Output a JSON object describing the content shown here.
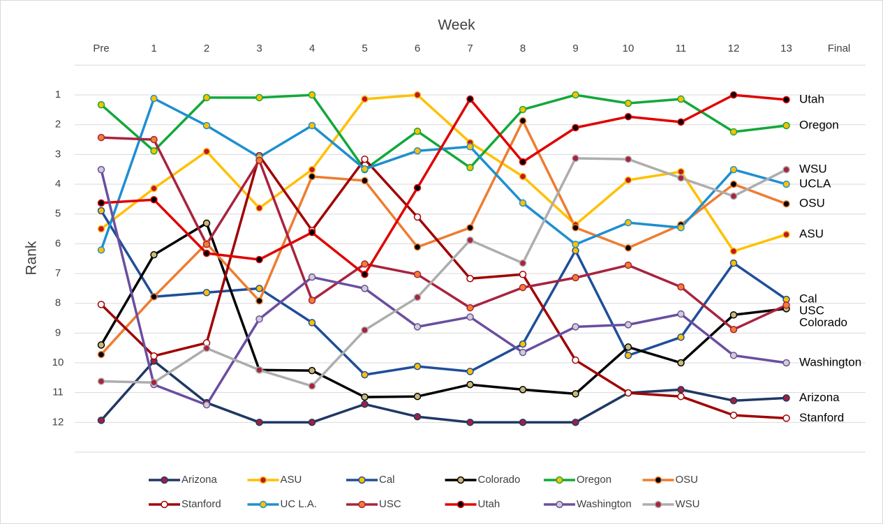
{
  "chart_data": {
    "type": "line",
    "x_axis_title": "Week",
    "y_axis_title": "Rank",
    "categories": [
      "Pre",
      "1",
      "2",
      "3",
      "4",
      "5",
      "6",
      "7",
      "8",
      "9",
      "10",
      "11",
      "12",
      "13",
      "Final"
    ],
    "ylim": [
      0,
      13
    ],
    "y_inverted": true,
    "yticks": [
      1,
      2,
      3,
      4,
      5,
      6,
      7,
      8,
      9,
      10,
      11,
      12
    ],
    "grid": true,
    "legend": "bottom",
    "series": [
      {
        "name": "Arizona",
        "end_label": "Arizona",
        "color": "#1f3864",
        "marker_color": "#a0203c",
        "values": [
          11.93,
          9.94,
          11.34,
          12,
          12,
          11.39,
          11.81,
          12,
          12,
          12,
          11.01,
          10.9,
          11.27,
          11.18,
          null
        ]
      },
      {
        "name": "ASU",
        "end_label": "ASU",
        "color": "#ffc000",
        "marker_color": "#c0162c",
        "values": [
          5.5,
          4.14,
          2.9,
          4.8,
          3.51,
          1.14,
          1.0,
          2.6,
          3.74,
          5.36,
          3.86,
          3.58,
          6.25,
          5.69,
          null
        ]
      },
      {
        "name": "Cal",
        "end_label": "Cal",
        "color": "#1f4e99",
        "marker_color": "#ffc000",
        "values": [
          4.89,
          7.78,
          7.64,
          7.5,
          8.65,
          10.4,
          10.12,
          10.29,
          9.37,
          6.23,
          9.75,
          9.14,
          6.65,
          7.87,
          null
        ]
      },
      {
        "name": "Colorado",
        "end_label": "Colorado",
        "color": "#000000",
        "marker_color": "#c9b97a",
        "values": [
          9.4,
          6.37,
          5.31,
          10.24,
          10.26,
          11.15,
          11.13,
          10.73,
          10.9,
          11.04,
          9.47,
          10.0,
          8.39,
          8.18,
          null
        ]
      },
      {
        "name": "Oregon",
        "end_label": "Oregon",
        "color": "#12a83a",
        "marker_color": "#ffc000",
        "values": [
          1.33,
          2.88,
          1.09,
          1.09,
          1.0,
          3.51,
          2.22,
          3.44,
          1.49,
          1.0,
          1.28,
          1.14,
          2.24,
          2.03,
          null
        ]
      },
      {
        "name": "OSU",
        "end_label": "OSU",
        "color": "#ed7d31",
        "marker_color": "#000000",
        "values": [
          9.72,
          7.78,
          5.99,
          7.92,
          3.74,
          3.88,
          6.11,
          5.46,
          1.87,
          5.46,
          6.14,
          5.36,
          4.0,
          4.66,
          null
        ]
      },
      {
        "name": "Stanford",
        "end_label": "Stanford",
        "color": "#a00000",
        "marker_color": "#ffffff",
        "values": [
          8.04,
          9.77,
          9.33,
          3.04,
          5.55,
          3.16,
          5.1,
          7.17,
          7.03,
          9.91,
          11.01,
          11.13,
          11.76,
          11.86,
          null
        ]
      },
      {
        "name": "UC L.A.",
        "end_label": "UCLA",
        "color": "#1e8fd0",
        "marker_color": "#ffc000",
        "values": [
          6.21,
          1.12,
          2.03,
          3.09,
          2.03,
          3.49,
          2.88,
          2.74,
          4.63,
          6.02,
          5.29,
          5.46,
          3.51,
          4.0,
          null
        ]
      },
      {
        "name": "USC",
        "end_label": "USC",
        "color": "#a8233f",
        "marker_color": "#f08030",
        "values": [
          2.43,
          2.5,
          6.02,
          3.2,
          7.9,
          6.68,
          7.03,
          8.15,
          7.47,
          7.14,
          6.72,
          7.45,
          8.88,
          8.06,
          null
        ]
      },
      {
        "name": "Utah",
        "end_label": "Utah",
        "color": "#e00000",
        "marker_color": "#000000",
        "values": [
          4.63,
          4.52,
          6.32,
          6.53,
          5.62,
          7.03,
          4.12,
          1.14,
          3.25,
          2.1,
          1.73,
          1.91,
          1.0,
          1.16,
          null
        ]
      },
      {
        "name": "Washington",
        "end_label": "Washington",
        "color": "#6a4ea0",
        "marker_color": "#d0cece",
        "values": [
          3.51,
          10.73,
          11.41,
          8.53,
          7.12,
          7.5,
          8.79,
          8.46,
          9.65,
          8.79,
          8.72,
          8.36,
          9.75,
          10.0,
          null
        ]
      },
      {
        "name": "WSU",
        "end_label": "WSU",
        "color": "#adadad",
        "marker_color": "#a8233f",
        "values": [
          10.62,
          10.66,
          9.51,
          10.24,
          10.78,
          8.9,
          7.8,
          5.88,
          6.65,
          3.13,
          3.16,
          3.79,
          4.4,
          3.51,
          null
        ]
      }
    ]
  }
}
